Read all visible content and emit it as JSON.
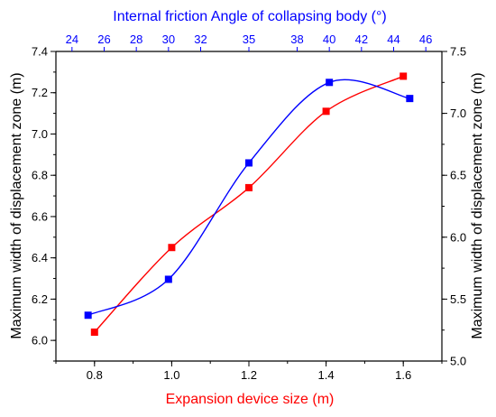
{
  "colors": {
    "series_red": "#ff0000",
    "series_blue": "#0000ff",
    "axis": "#000000"
  },
  "chart_data": {
    "type": "line",
    "title": "",
    "xlabel_bottom": "Expansion device size (m)",
    "xlabel_top": "Internal friction Angle of collapsing body (°)",
    "ylabel_left": "Maximum width of displacement zone (m)",
    "ylabel_right": "Maximum width of displacement zone (m)",
    "x_bottom": {
      "lim": [
        0.7,
        1.7
      ],
      "ticks": [
        0.8,
        1.0,
        1.2,
        1.4,
        1.6
      ],
      "tick_labels": [
        "0.8",
        "1.0",
        "1.2",
        "1.4",
        "1.6"
      ]
    },
    "x_top": {
      "lim": [
        23,
        47
      ],
      "ticks": [
        24,
        26,
        28,
        30,
        32,
        35,
        38,
        40,
        42,
        44,
        46
      ],
      "tick_labels": [
        "24",
        "26",
        "28",
        "30",
        "32",
        "35",
        "38",
        "40",
        "42",
        "44",
        "46"
      ]
    },
    "y_left": {
      "lim": [
        5.9,
        7.4
      ],
      "ticks": [
        6.0,
        6.2,
        6.4,
        6.6,
        6.8,
        7.0,
        7.2,
        7.4
      ],
      "tick_labels": [
        "6.0",
        "6.2",
        "6.4",
        "6.6",
        "6.8",
        "7.0",
        "7.2",
        "7.4"
      ]
    },
    "y_right": {
      "lim": [
        5.0,
        7.5
      ],
      "ticks": [
        5.0,
        5.5,
        6.0,
        6.5,
        7.0,
        7.5
      ],
      "tick_labels": [
        "5.0",
        "5.5",
        "6.0",
        "6.5",
        "7.0",
        "7.5"
      ]
    },
    "grid": false,
    "series": [
      {
        "color": "#ff0000",
        "x_axis": "bottom",
        "y_axis": "left",
        "x": [
          0.8,
          1.0,
          1.2,
          1.4,
          1.6
        ],
        "y": [
          6.04,
          6.45,
          6.74,
          7.11,
          7.28
        ]
      },
      {
        "color": "#0000ff",
        "x_axis": "top",
        "y_axis": "right",
        "x": [
          25,
          30,
          35,
          40,
          45
        ],
        "y": [
          5.37,
          5.66,
          6.6,
          7.25,
          7.12
        ]
      }
    ]
  }
}
